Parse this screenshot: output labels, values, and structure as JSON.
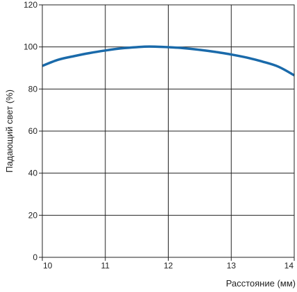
{
  "chart_data": {
    "type": "line",
    "title": "",
    "xlabel": "Расстояние (мм)",
    "ylabel": "Падающий свет (%)",
    "xlim": [
      10,
      14
    ],
    "ylim": [
      0,
      120
    ],
    "x_ticks": [
      10,
      11,
      12,
      13,
      14
    ],
    "y_ticks": [
      0,
      20,
      40,
      60,
      80,
      100,
      120
    ],
    "x_tick_labels": [
      "10",
      "11",
      "12",
      "13",
      "14"
    ],
    "y_tick_labels": [
      "0",
      "20",
      "40",
      "60",
      "80",
      "100",
      "120"
    ],
    "grid": true,
    "legend": "none",
    "line_color": "#1a6aaa",
    "series": [
      {
        "x": [
          9.9,
          10.25,
          10.5,
          10.75,
          11.0,
          11.25,
          11.5,
          11.7,
          12.0,
          12.25,
          12.5,
          12.75,
          13.0,
          13.25,
          13.5,
          13.75,
          14.0
        ],
        "values": [
          91.0,
          93.9,
          95.6,
          97.1,
          98.3,
          99.3,
          99.9,
          100.2,
          99.9,
          99.4,
          98.6,
          97.6,
          96.4,
          94.9,
          93.0,
          90.6,
          86.5
        ]
      }
    ]
  }
}
